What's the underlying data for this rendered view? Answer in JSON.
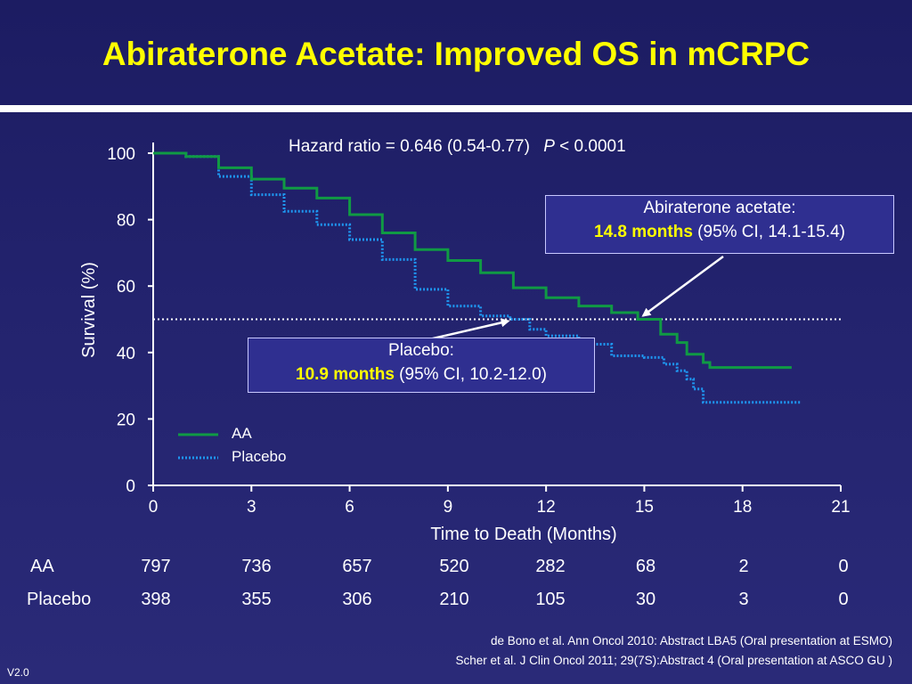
{
  "slide": {
    "title": "Abiraterone Acetate: Improved OS in mCRPC",
    "version": "V2.0",
    "references": [
      "de Bono et al. Ann Oncol 2010: Abstract LBA5 (Oral presentation at ESMO)",
      "Scher et al. J Clin Oncol 2011; 29(7S):Abstract 4 (Oral presentation at ASCO GU )"
    ]
  },
  "callouts": {
    "aa": {
      "line1": "Abiraterone acetate:",
      "median": "14.8 months",
      "ci": "(95% CI, 14.1-15.4)"
    },
    "placebo": {
      "line1": "Placebo:",
      "median": "10.9 months",
      "ci": "(95% CI, 10.2-12.0)"
    }
  },
  "risk_table": {
    "rows": [
      {
        "label": "AA",
        "values": [
          "797",
          "736",
          "657",
          "520",
          "282",
          "68",
          "2",
          "0"
        ]
      },
      {
        "label": "Placebo",
        "values": [
          "398",
          "355",
          "306",
          "210",
          "105",
          "30",
          "3",
          "0"
        ]
      }
    ]
  },
  "colors": {
    "aa": "#109a44",
    "placebo": "#1e96f0",
    "title": "#ffff00",
    "background": "#23236e"
  },
  "chart_data": {
    "type": "line",
    "annotation": {
      "hr_text": "Hazard ratio = 0.646 (0.54-0.77)",
      "p_label": "P",
      "p_text": " < 0.0001"
    },
    "xlabel": "Time to Death (Months)",
    "ylabel": "Survival (%)",
    "xlim": [
      0,
      21
    ],
    "ylim": [
      0,
      100
    ],
    "x_ticks": [
      0,
      3,
      6,
      9,
      12,
      15,
      18,
      21
    ],
    "x_tick_labels": [
      "0",
      "3",
      "6",
      "9",
      "12",
      "15",
      "18",
      "21"
    ],
    "y_ticks": [
      0,
      20,
      40,
      60,
      80,
      100
    ],
    "y_tick_labels": [
      "0",
      "20",
      "40",
      "60",
      "80",
      "100"
    ],
    "reference_line_y": 50,
    "legend": {
      "position": "lower-left",
      "entries": [
        "AA",
        "Placebo"
      ]
    },
    "series": [
      {
        "name": "AA",
        "style": "solid",
        "color": "#109a44",
        "points": [
          [
            0,
            100
          ],
          [
            1,
            99
          ],
          [
            2,
            95.6
          ],
          [
            3,
            92.2
          ],
          [
            4,
            89.5
          ],
          [
            5,
            86.5
          ],
          [
            6,
            81.5
          ],
          [
            7,
            76
          ],
          [
            8,
            71
          ],
          [
            9,
            67.7
          ],
          [
            10,
            64
          ],
          [
            11,
            59.5
          ],
          [
            12,
            56.5
          ],
          [
            13,
            54
          ],
          [
            14,
            52
          ],
          [
            14.8,
            50
          ],
          [
            15.5,
            45.5
          ],
          [
            16,
            43
          ],
          [
            16.3,
            39.5
          ],
          [
            16.8,
            39.5
          ],
          [
            16.8,
            37
          ],
          [
            17,
            37
          ],
          [
            17,
            35.5
          ],
          [
            19.5,
            35.5
          ]
        ]
      },
      {
        "name": "Placebo",
        "style": "dotted",
        "color": "#1e96f0",
        "points": [
          [
            0,
            100
          ],
          [
            1,
            99
          ],
          [
            2,
            93
          ],
          [
            3,
            87.5
          ],
          [
            4,
            82.5
          ],
          [
            5,
            78.5
          ],
          [
            6,
            74
          ],
          [
            7,
            68
          ],
          [
            8,
            59
          ],
          [
            9,
            54
          ],
          [
            10,
            51
          ],
          [
            10.9,
            50
          ],
          [
            11.5,
            47
          ],
          [
            12,
            45
          ],
          [
            13,
            42.5
          ],
          [
            14,
            39
          ],
          [
            15,
            38.5
          ],
          [
            15.6,
            36.5
          ],
          [
            16,
            34.5
          ],
          [
            16.3,
            32
          ],
          [
            16.5,
            29
          ],
          [
            16.8,
            27.5
          ],
          [
            16.8,
            25
          ],
          [
            19.8,
            25
          ]
        ]
      }
    ]
  }
}
